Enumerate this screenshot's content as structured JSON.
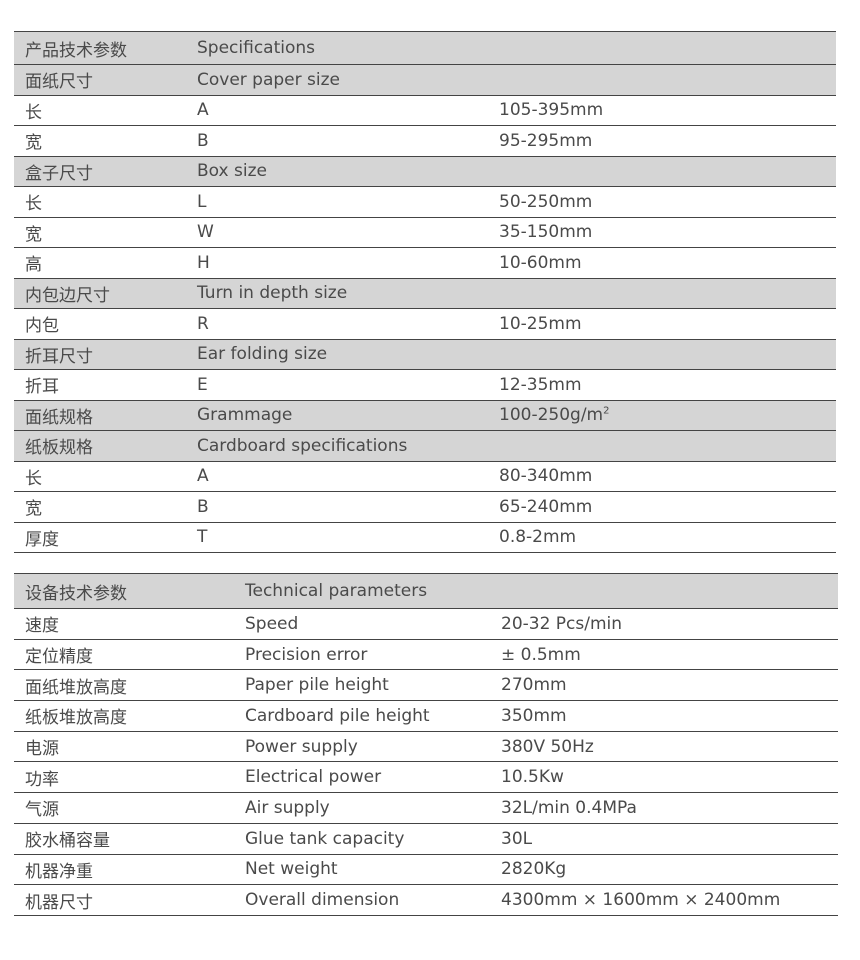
{
  "specifications": {
    "header": {
      "cn": "产品技术参数",
      "en": "Specifications"
    },
    "rows": [
      {
        "type": "group",
        "cn": "面纸尺寸",
        "en": "Cover paper size",
        "value": ""
      },
      {
        "type": "item",
        "cn": "长",
        "en": "A",
        "value": "105-395mm"
      },
      {
        "type": "item",
        "cn": "宽",
        "en": "B",
        "value": "95-295mm"
      },
      {
        "type": "group",
        "cn": "盒子尺寸",
        "en": "Box size",
        "value": ""
      },
      {
        "type": "item",
        "cn": "长",
        "en": "L",
        "value": "50-250mm"
      },
      {
        "type": "item",
        "cn": "宽",
        "en": "W",
        "value": "35-150mm"
      },
      {
        "type": "item",
        "cn": "高",
        "en": "H",
        "value": "10-60mm"
      },
      {
        "type": "group",
        "cn": "内包边尺寸",
        "en": "Turn in depth size",
        "value": ""
      },
      {
        "type": "item",
        "cn": "内包",
        "en": "R",
        "value": "10-25mm"
      },
      {
        "type": "group",
        "cn": "折耳尺寸",
        "en": "Ear folding size",
        "value": ""
      },
      {
        "type": "item",
        "cn": "折耳",
        "en": "E",
        "value": "12-35mm"
      },
      {
        "type": "group",
        "cn": "面纸规格",
        "en": "Grammage",
        "value": "100-250g/m",
        "sup": "2"
      },
      {
        "type": "group",
        "cn": "纸板规格",
        "en": "Cardboard specifications",
        "value": ""
      },
      {
        "type": "item",
        "cn": "长",
        "en": "A",
        "value": "80-340mm"
      },
      {
        "type": "item",
        "cn": "宽",
        "en": "B",
        "value": "65-240mm"
      },
      {
        "type": "item",
        "cn": "厚度",
        "en": "T",
        "value": "0.8-2mm"
      }
    ]
  },
  "technical": {
    "header": {
      "cn": "设备技术参数",
      "en": "Technical parameters"
    },
    "rows": [
      {
        "cn": "速度",
        "en": "Speed",
        "value": "20-32 Pcs/min"
      },
      {
        "cn": "定位精度",
        "en": "Precision error",
        "value": "± 0.5mm"
      },
      {
        "cn": "面纸堆放高度",
        "en": "Paper pile height",
        "value": "270mm"
      },
      {
        "cn": "纸板堆放高度",
        "en": "Cardboard pile height",
        "value": "350mm"
      },
      {
        "cn": "电源",
        "en": "Power supply",
        "value": "380V  50Hz"
      },
      {
        "cn": "功率",
        "en": "Electrical power",
        "value": "10.5Kw"
      },
      {
        "cn": "气源",
        "en": "Air supply",
        "value": "32L/min    0.4MPa"
      },
      {
        "cn": "胶水桶容量",
        "en": "Glue tank capacity",
        "value": "30L"
      },
      {
        "cn": "机器净重",
        "en": "Net weight",
        "value": "2820Kg"
      },
      {
        "cn": "机器尺寸",
        "en": "Overall dimension",
        "value": "4300mm × 1600mm × 2400mm"
      }
    ]
  }
}
